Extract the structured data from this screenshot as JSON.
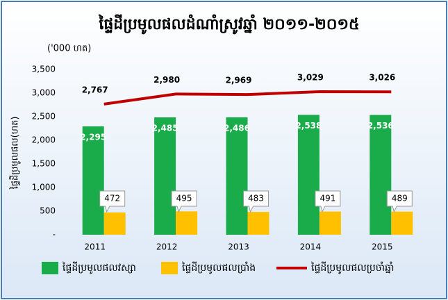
{
  "chart_data": {
    "type": "bar_line",
    "title": "ផ្ទៃដីប្រមូលផលដំណាំស្រូវឆ្នាំ ២០១១-២០១៥",
    "unit_label": "('000 ហត)",
    "y_axis_label": "ផ្ទៃដីប្រមូលផល(ហត)",
    "categories": [
      "2011",
      "2012",
      "2013",
      "2014",
      "2015"
    ],
    "series": [
      {
        "name": "ផ្ទៃដីប្រមូលផលវស្សា",
        "type": "bar",
        "color": "#1aab4b",
        "values": [
          2295,
          2485,
          2486,
          2538,
          2536
        ],
        "value_labels": [
          "2,295",
          "2,485",
          "2,486",
          "2,538",
          "2,536"
        ]
      },
      {
        "name": "ផ្ទៃដីប្រមូលផលប្រាំង",
        "type": "bar",
        "color": "#ffc000",
        "values": [
          472,
          495,
          483,
          491,
          489
        ]
      },
      {
        "name": "ផ្ទៃដីប្រមូលផលប្រចាំឆ្នាំ",
        "type": "line",
        "color": "#c00000",
        "values": [
          2767,
          2980,
          2969,
          3029,
          3026
        ],
        "value_labels": [
          "2,767",
          "2,980",
          "2,969",
          "3,029",
          "3,026"
        ]
      }
    ],
    "ylim": [
      0,
      3500
    ],
    "yticks": [
      {
        "value": 0,
        "label": "-"
      },
      500,
      {
        "value": 1000,
        "label": "1,000"
      },
      {
        "value": 1500,
        "label": "1,500"
      },
      {
        "value": 2000,
        "label": "2,000"
      },
      {
        "value": 2500,
        "label": "2,500"
      },
      {
        "value": 3000,
        "label": "3,000"
      },
      {
        "value": 3500,
        "label": "3,500"
      }
    ]
  }
}
